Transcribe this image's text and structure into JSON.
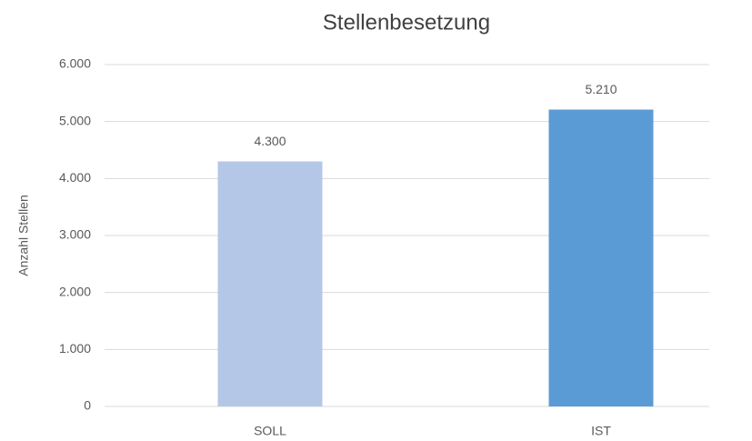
{
  "chart_data": {
    "type": "bar",
    "title": "Stellenbesetzung",
    "y_label": "Anzahl Stellen",
    "categories": [
      "SOLL",
      "IST"
    ],
    "values": [
      4300,
      5210
    ],
    "value_labels": [
      "4.300",
      "5.210"
    ],
    "colors": [
      "#b4c7e7",
      "#5b9bd5"
    ],
    "ylim": [
      0,
      6000
    ],
    "yticks": [
      0,
      {
        "value": 1000,
        "label": "1.000"
      },
      {
        "value": 2000,
        "label": "2.000"
      },
      {
        "value": 3000,
        "label": "3.000"
      },
      {
        "value": 4000,
        "label": "4.000"
      },
      {
        "value": 5000,
        "label": "5.000"
      },
      {
        "value": 6000,
        "label": "6.000"
      }
    ],
    "grid": true
  }
}
